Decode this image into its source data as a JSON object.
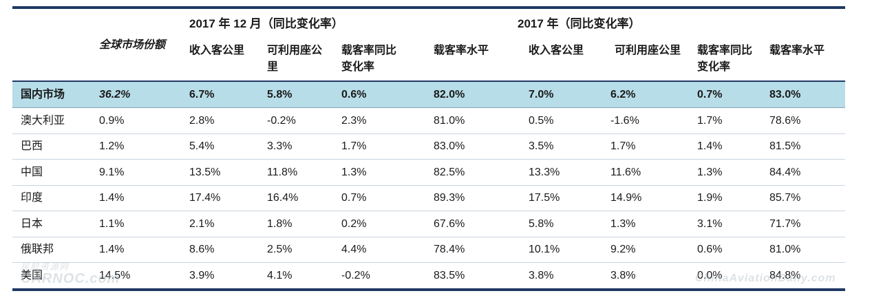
{
  "groups": {
    "dec": "2017 年 12 月（同比变化率）",
    "year": "2017 年（同比变化率）"
  },
  "headers": {
    "share": "全球市场份额",
    "dec_rpk": "收入客公里",
    "dec_ask": [
      "可利用座公",
      "里"
    ],
    "dec_lf_change": [
      "载客率同比",
      "变化率"
    ],
    "dec_lf_level": "载客率水平",
    "year_rpk": "收入客公里",
    "year_ask": "可利用座公里",
    "year_lf_change": [
      "载客率同比",
      "变化率"
    ],
    "year_lf_level": "载客率水平"
  },
  "rows": [
    {
      "market": "国内市场",
      "share": "36.2%",
      "d_rpk": "6.7%",
      "d_ask": "5.8%",
      "d_lfc": "0.6%",
      "d_lf": "82.0%",
      "y_rpk": "7.0%",
      "y_ask": "6.2%",
      "y_lfc": "0.7%",
      "y_lf": "83.0%"
    },
    {
      "market": "澳大利亚",
      "share": "0.9%",
      "d_rpk": "2.8%",
      "d_ask": "-0.2%",
      "d_lfc": "2.3%",
      "d_lf": "81.0%",
      "y_rpk": "0.5%",
      "y_ask": "-1.6%",
      "y_lfc": "1.7%",
      "y_lf": "78.6%"
    },
    {
      "market": "巴西",
      "share": "1.2%",
      "d_rpk": "5.4%",
      "d_ask": "3.3%",
      "d_lfc": "1.7%",
      "d_lf": "83.0%",
      "y_rpk": "3.5%",
      "y_ask": "1.7%",
      "y_lfc": "1.4%",
      "y_lf": "81.5%"
    },
    {
      "market": "中国",
      "share": "9.1%",
      "d_rpk": "13.5%",
      "d_ask": "11.8%",
      "d_lfc": "1.3%",
      "d_lf": "82.5%",
      "y_rpk": "13.3%",
      "y_ask": "11.6%",
      "y_lfc": "1.3%",
      "y_lf": "84.4%"
    },
    {
      "market": "印度",
      "share": "1.4%",
      "d_rpk": "17.4%",
      "d_ask": "16.4%",
      "d_lfc": "0.7%",
      "d_lf": "89.3%",
      "y_rpk": "17.5%",
      "y_ask": "14.9%",
      "y_lfc": "1.9%",
      "y_lf": "85.7%"
    },
    {
      "market": "日本",
      "share": "1.1%",
      "d_rpk": "2.1%",
      "d_ask": "1.8%",
      "d_lfc": "0.2%",
      "d_lf": "67.6%",
      "y_rpk": "5.8%",
      "y_ask": "1.3%",
      "y_lfc": "3.1%",
      "y_lf": "71.7%"
    },
    {
      "market": "俄联邦",
      "share": "1.4%",
      "d_rpk": "8.6%",
      "d_ask": "2.5%",
      "d_lfc": "4.4%",
      "d_lf": "78.4%",
      "y_rpk": "10.1%",
      "y_ask": "9.2%",
      "y_lfc": "0.6%",
      "y_lf": "81.0%"
    },
    {
      "market": "美国",
      "share": "14.5%",
      "d_rpk": "3.9%",
      "d_ask": "4.1%",
      "d_lfc": "-0.2%",
      "d_lf": "83.5%",
      "y_rpk": "3.8%",
      "y_ask": "3.8%",
      "y_lfc": "0.0%",
      "y_lf": "84.8%"
    }
  ],
  "watermarks": {
    "left_top": "民航资源网",
    "left": "CARNOC.com",
    "right": "ChinaAviationDaily.com"
  }
}
